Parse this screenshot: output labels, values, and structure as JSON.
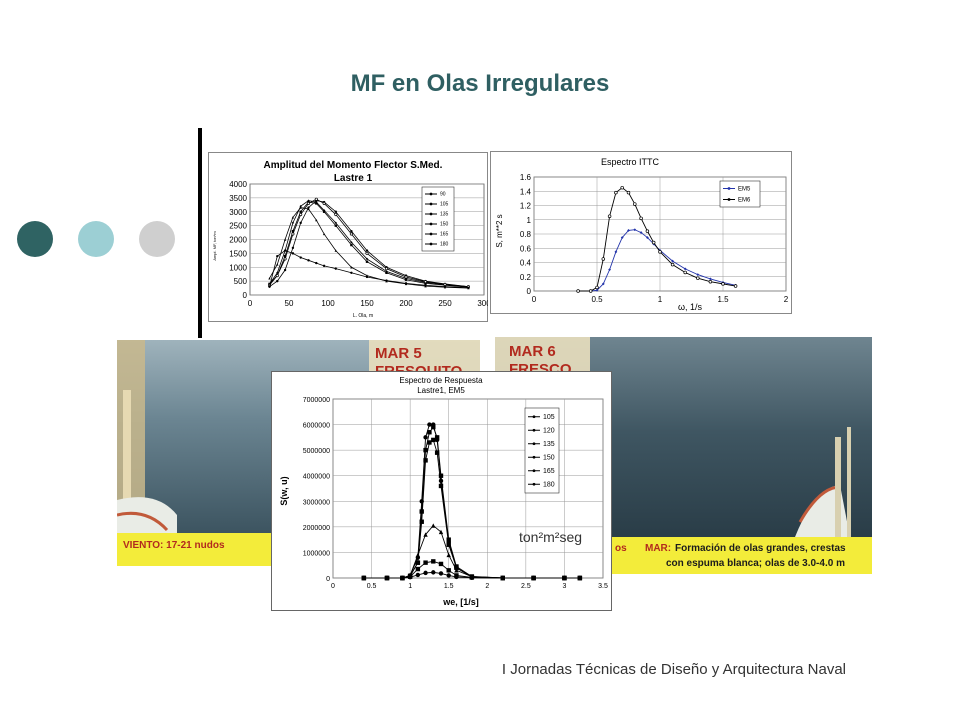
{
  "slide": {
    "title": "MF en Olas Irregulares",
    "footer": "I Jornadas Técnicas de Diseño y Arquitectura Naval",
    "dot_colors": [
      "#2f6363",
      "#9ccfd4",
      "#cfcfcf"
    ]
  },
  "photo_left": {
    "mar_label": "MAR 5",
    "cut_label": "FRESQUITO",
    "caption": "VIENTO: 17-21 nudos"
  },
  "photo_right": {
    "mar_label": "MAR 6",
    "cut_label": "FRESCO",
    "caption_fragment": "os",
    "caption_key": "MAR:",
    "caption_line1": "Formación de olas grandes, crestas",
    "caption_line2": "con espuma blanca;  olas de 3.0-4.0 m"
  },
  "chart_data": [
    {
      "type": "line",
      "title": "Amplitud del Momento Flector S.Med.",
      "subtitle": "Lastre 1",
      "xlabel": "L. Ola, m",
      "ylabel": "Ampl. MF, ton*m",
      "xlim": [
        0,
        300
      ],
      "ylim": [
        0,
        4000
      ],
      "xticks": [
        0,
        50,
        100,
        150,
        200,
        250,
        300
      ],
      "yticks": [
        0,
        500,
        1000,
        1500,
        2000,
        2500,
        3000,
        3500,
        4000
      ],
      "legend_position": "top-right",
      "series": [
        {
          "name": "90",
          "x": [
            25,
            35,
            45,
            55,
            65,
            75,
            85,
            95,
            110,
            130,
            150,
            175,
            200,
            225,
            250,
            280
          ],
          "y": [
            300,
            500,
            900,
            1700,
            2600,
            3150,
            3400,
            3350,
            3000,
            2300,
            1600,
            1000,
            700,
            500,
            400,
            300
          ]
        },
        {
          "name": "105",
          "x": [
            25,
            35,
            45,
            55,
            65,
            75,
            85,
            95,
            110,
            130,
            150,
            175,
            200,
            225,
            250,
            280
          ],
          "y": [
            400,
            700,
            1400,
            2300,
            3000,
            3350,
            3300,
            3000,
            2500,
            1800,
            1200,
            800,
            550,
            420,
            350,
            280
          ]
        },
        {
          "name": "135",
          "x": [
            25,
            35,
            45,
            55,
            65,
            75,
            85,
            95,
            110,
            130,
            150,
            175,
            200,
            225,
            250,
            280
          ],
          "y": [
            600,
            1100,
            2000,
            2800,
            3150,
            3100,
            2700,
            2200,
            1600,
            1000,
            700,
            500,
            400,
            320,
            280,
            250
          ]
        },
        {
          "name": "150",
          "x": [
            25,
            35,
            45,
            55,
            65,
            75,
            85,
            95,
            110,
            130,
            150,
            175,
            200,
            225,
            250,
            280
          ],
          "y": [
            400,
            800,
            1600,
            2600,
            3200,
            3400,
            3350,
            3050,
            2600,
            1900,
            1300,
            850,
            600,
            450,
            370,
            300
          ]
        },
        {
          "name": "165",
          "x": [
            25,
            35,
            45,
            55,
            65,
            75,
            85,
            95,
            110,
            130,
            150,
            175,
            200,
            225,
            250,
            280
          ],
          "y": [
            350,
            700,
            1300,
            2200,
            2900,
            3300,
            3450,
            3300,
            2900,
            2200,
            1500,
            950,
            650,
            480,
            380,
            300
          ]
        },
        {
          "name": "180",
          "x": [
            25,
            35,
            45,
            55,
            65,
            75,
            85,
            95,
            110,
            130,
            150,
            175,
            200,
            225,
            250,
            280
          ],
          "y": [
            300,
            1400,
            1600,
            1500,
            1350,
            1250,
            1150,
            1050,
            950,
            800,
            650,
            520,
            420,
            350,
            300,
            260
          ]
        }
      ]
    },
    {
      "type": "line",
      "title": "Espectro ITTC",
      "xlabel": "ω, 1/s",
      "ylabel": "S, m**2 s",
      "xlim": [
        0,
        2
      ],
      "ylim": [
        0,
        1.6
      ],
      "xticks": [
        0,
        0.5,
        1,
        1.5,
        2
      ],
      "yticks": [
        0,
        0.2,
        0.4,
        0.6,
        0.8,
        1,
        1.2,
        1.4,
        1.6
      ],
      "legend_position": "top-right",
      "series": [
        {
          "name": "EM5",
          "x": [
            0.35,
            0.45,
            0.5,
            0.55,
            0.6,
            0.65,
            0.7,
            0.75,
            0.8,
            0.85,
            0.9,
            0.95,
            1.0,
            1.1,
            1.2,
            1.3,
            1.4,
            1.5,
            1.6
          ],
          "y": [
            0,
            0,
            0.01,
            0.1,
            0.3,
            0.55,
            0.75,
            0.85,
            0.86,
            0.82,
            0.75,
            0.66,
            0.57,
            0.42,
            0.31,
            0.23,
            0.17,
            0.12,
            0.08
          ]
        },
        {
          "name": "EM6",
          "x": [
            0.35,
            0.45,
            0.5,
            0.55,
            0.6,
            0.65,
            0.7,
            0.75,
            0.8,
            0.85,
            0.9,
            0.95,
            1.0,
            1.1,
            1.2,
            1.3,
            1.4,
            1.5,
            1.6
          ],
          "y": [
            0,
            0,
            0.05,
            0.45,
            1.05,
            1.38,
            1.45,
            1.38,
            1.22,
            1.02,
            0.84,
            0.68,
            0.55,
            0.37,
            0.26,
            0.18,
            0.13,
            0.1,
            0.07
          ]
        }
      ]
    },
    {
      "type": "line",
      "title": "Espectro de Respuesta",
      "subtitle": "Lastre1, EM5",
      "xlabel": "we, [1/s]",
      "ylabel": "S(w, u)",
      "xlim": [
        0,
        3.5
      ],
      "ylim": [
        0,
        7000000
      ],
      "xticks": [
        0,
        0.5,
        1,
        1.5,
        2,
        2.5,
        3,
        3.5
      ],
      "yticks": [
        0,
        1000000,
        2000000,
        3000000,
        4000000,
        5000000,
        6000000,
        7000000
      ],
      "legend_position": "top-right",
      "annotation": "ton²m²seg",
      "series": [
        {
          "name": "105",
          "x": [
            0.4,
            0.7,
            0.9,
            1.0,
            1.1,
            1.15,
            1.2,
            1.25,
            1.3,
            1.35,
            1.4,
            1.5,
            1.6,
            1.8,
            2.2,
            2.6,
            3.0,
            3.2
          ],
          "y": [
            0,
            0,
            0,
            100000,
            800000,
            3000000,
            5500000,
            6000000,
            6000000,
            5400000,
            3800000,
            1400000,
            400000,
            50000,
            0,
            0,
            0,
            0
          ]
        },
        {
          "name": "120",
          "x": [
            0.4,
            0.7,
            0.9,
            1.0,
            1.1,
            1.15,
            1.2,
            1.25,
            1.3,
            1.35,
            1.4,
            1.5,
            1.6,
            1.8,
            2.2,
            2.6,
            3.0,
            3.2
          ],
          "y": [
            0,
            0,
            0,
            80000,
            600000,
            2600000,
            5000000,
            5700000,
            5900000,
            5500000,
            4000000,
            1500000,
            450000,
            60000,
            0,
            0,
            0,
            0
          ]
        },
        {
          "name": "135",
          "x": [
            0.4,
            0.7,
            0.9,
            1.0,
            1.1,
            1.2,
            1.3,
            1.4,
            1.5,
            1.6,
            1.8,
            2.2,
            2.6,
            3.0,
            3.2
          ],
          "y": [
            0,
            0,
            0,
            100000,
            900000,
            1700000,
            2050000,
            1800000,
            900000,
            300000,
            50000,
            0,
            0,
            0,
            0
          ]
        },
        {
          "name": "150",
          "x": [
            0.4,
            0.7,
            0.9,
            1.0,
            1.1,
            1.15,
            1.2,
            1.25,
            1.3,
            1.35,
            1.4,
            1.5,
            1.6,
            1.8,
            2.2,
            2.6,
            3.0,
            3.2
          ],
          "y": [
            0,
            0,
            0,
            80000,
            600000,
            2200000,
            4600000,
            5300000,
            5400000,
            4900000,
            3600000,
            1300000,
            400000,
            40000,
            0,
            0,
            0,
            0
          ]
        },
        {
          "name": "165",
          "x": [
            0.4,
            0.7,
            0.9,
            1.0,
            1.1,
            1.2,
            1.3,
            1.4,
            1.5,
            1.6,
            1.8,
            2.2,
            2.6,
            3.0,
            3.2
          ],
          "y": [
            0,
            0,
            0,
            50000,
            350000,
            600000,
            650000,
            550000,
            300000,
            100000,
            20000,
            0,
            0,
            0,
            0
          ]
        },
        {
          "name": "180",
          "x": [
            0.4,
            0.7,
            0.9,
            1.0,
            1.1,
            1.2,
            1.3,
            1.4,
            1.5,
            1.6,
            1.8,
            2.2,
            2.6,
            3.0,
            3.2
          ],
          "y": [
            0,
            0,
            0,
            30000,
            120000,
            200000,
            220000,
            180000,
            100000,
            40000,
            10000,
            0,
            0,
            0,
            0
          ]
        }
      ]
    }
  ]
}
